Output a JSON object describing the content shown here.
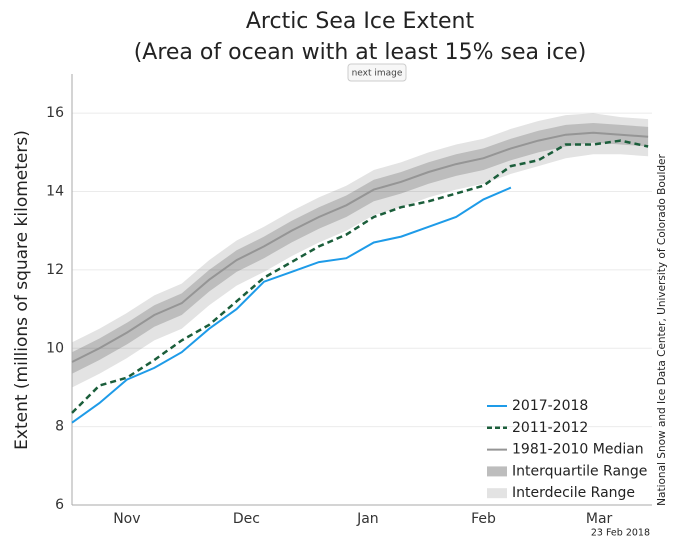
{
  "overlay_button": "next image",
  "chart_data": {
    "type": "line",
    "title": "Arctic Sea Ice Extent",
    "subtitle": "(Area of ocean with at least 15% sea ice)",
    "y_label": "Extent (millions of square kilometers)",
    "source": "National Snow and Ice Data Center, University of Colorado Boulder",
    "date": "23 Feb 2018",
    "xlim": [
      1,
      149
    ],
    "xticks": [
      {
        "value": 15,
        "label": "Nov"
      },
      {
        "value": 45.5,
        "label": "Dec"
      },
      {
        "value": 76.5,
        "label": "Jan"
      },
      {
        "value": 106,
        "label": "Feb"
      },
      {
        "value": 135.5,
        "label": "Mar"
      }
    ],
    "ylim": [
      6,
      17
    ],
    "yticks": [
      6,
      8,
      10,
      12,
      14,
      16
    ],
    "grid": true,
    "legend": "lower right",
    "x": [
      1,
      8,
      15,
      22,
      29,
      36,
      43,
      50,
      57,
      64,
      71,
      78,
      85,
      92,
      99,
      106,
      113,
      120,
      127,
      134,
      141,
      148
    ],
    "bands": [
      {
        "name": "Interdecile Range",
        "color": "#e3e3e3",
        "low": [
          9.0,
          9.35,
          9.75,
          10.2,
          10.5,
          11.1,
          11.6,
          11.95,
          12.35,
          12.7,
          13.0,
          13.4,
          13.6,
          13.85,
          14.05,
          14.2,
          14.45,
          14.65,
          14.85,
          14.95,
          14.95,
          14.9
        ],
        "high": [
          10.15,
          10.5,
          10.9,
          11.35,
          11.65,
          12.25,
          12.75,
          13.1,
          13.5,
          13.85,
          14.15,
          14.55,
          14.75,
          15.0,
          15.2,
          15.35,
          15.6,
          15.8,
          15.95,
          16.0,
          15.9,
          15.85
        ]
      },
      {
        "name": "Interquartile Range",
        "color": "#bdbdbd",
        "low": [
          9.35,
          9.7,
          10.1,
          10.55,
          10.85,
          11.45,
          11.95,
          12.3,
          12.7,
          13.05,
          13.35,
          13.75,
          13.95,
          14.2,
          14.4,
          14.55,
          14.8,
          15.0,
          15.15,
          15.25,
          15.2,
          15.15
        ],
        "high": [
          9.9,
          10.25,
          10.65,
          11.1,
          11.4,
          12.0,
          12.5,
          12.85,
          13.25,
          13.6,
          13.9,
          14.3,
          14.5,
          14.75,
          14.95,
          15.1,
          15.35,
          15.55,
          15.7,
          15.75,
          15.7,
          15.65
        ]
      }
    ],
    "series": [
      {
        "name": "2017-2018",
        "color": "#1e9be8",
        "dash": false,
        "values": [
          8.1,
          8.6,
          9.2,
          9.5,
          9.9,
          10.5,
          11.0,
          11.7,
          11.95,
          12.2,
          12.3,
          12.7,
          12.85,
          13.1,
          13.35,
          13.8,
          14.1,
          null,
          null,
          null,
          null,
          null
        ]
      },
      {
        "name": "2011-2012",
        "color": "#1b5e3b",
        "dash": true,
        "values": [
          8.35,
          9.05,
          9.25,
          9.7,
          10.2,
          10.6,
          11.2,
          11.8,
          12.2,
          12.6,
          12.9,
          13.35,
          13.6,
          13.75,
          13.95,
          14.15,
          14.65,
          14.8,
          15.2,
          15.2,
          15.3,
          15.15
        ]
      },
      {
        "name": "1981-2010 Median",
        "color": "#959595",
        "dash": false,
        "values": [
          9.65,
          10.0,
          10.4,
          10.85,
          11.15,
          11.75,
          12.25,
          12.6,
          13.0,
          13.35,
          13.65,
          14.05,
          14.25,
          14.5,
          14.7,
          14.85,
          15.1,
          15.3,
          15.45,
          15.5,
          15.45,
          15.4
        ]
      }
    ]
  }
}
